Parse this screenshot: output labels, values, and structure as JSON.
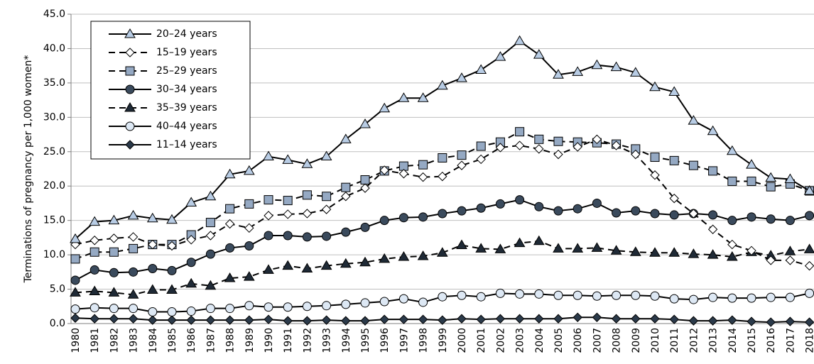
{
  "chart_data": {
    "type": "line",
    "y_label": "Terminations of pregnancy per 1,000 women*",
    "categories": [
      "1980",
      "1981",
      "1982",
      "1983",
      "1984",
      "1985",
      "1986",
      "1987",
      "1988",
      "1989",
      "1990",
      "1991",
      "1992",
      "1993",
      "1994",
      "1995",
      "1996",
      "1997",
      "1998",
      "1999",
      "2000",
      "2001",
      "2002",
      "2003",
      "2004",
      "2005",
      "2006",
      "2007",
      "2008",
      "2009",
      "2010",
      "2011",
      "2012",
      "2013",
      "2014",
      "2015",
      "2016",
      "2017",
      "2018"
    ],
    "ylim": [
      0,
      45
    ],
    "yticks": [
      {
        "value": 0,
        "label": "0.0"
      },
      {
        "value": 5,
        "label": "5.0"
      },
      {
        "value": 10,
        "label": "10.0"
      },
      {
        "value": 15,
        "label": "15.0"
      },
      {
        "value": 20,
        "label": "20.0"
      },
      {
        "value": 25,
        "label": "25.0"
      },
      {
        "value": 30,
        "label": "30.0"
      },
      {
        "value": 35,
        "label": "35.0"
      },
      {
        "value": 40,
        "label": "40.0"
      },
      {
        "value": 45,
        "label": "45.0"
      }
    ],
    "grid": true,
    "legend": "top-left",
    "series": [
      {
        "name": "20–24 years",
        "color": "#000000",
        "dashed": false,
        "marker": "triangle",
        "marker_color": "#b8cce4",
        "values": [
          12.3,
          14.8,
          15.0,
          15.7,
          15.3,
          15.1,
          17.6,
          18.5,
          21.7,
          22.2,
          24.3,
          23.8,
          23.2,
          24.3,
          26.8,
          29.0,
          31.3,
          32.8,
          32.8,
          34.6,
          35.7,
          36.9,
          38.8,
          41.1,
          39.1,
          36.2,
          36.6,
          37.6,
          37.3,
          36.5,
          34.4,
          33.7,
          29.5,
          28.0,
          25.1,
          23.1,
          21.2,
          21.0,
          19.3
        ]
      },
      {
        "name": "15–19 years",
        "color": "#000000",
        "dashed": true,
        "marker": "diamond",
        "marker_color": "#ffffff",
        "values": [
          11.5,
          12.1,
          12.4,
          12.6,
          11.5,
          11.3,
          12.2,
          12.8,
          14.5,
          13.9,
          15.7,
          15.9,
          16.0,
          16.6,
          18.5,
          19.7,
          22.3,
          21.8,
          21.3,
          21.4,
          23.0,
          23.9,
          25.6,
          25.9,
          25.4,
          24.6,
          25.7,
          26.8,
          25.9,
          24.6,
          21.6,
          18.2,
          16.0,
          13.7,
          11.5,
          10.6,
          9.2,
          9.2,
          8.4
        ]
      },
      {
        "name": "25–29 years",
        "color": "#000000",
        "dashed": true,
        "marker": "square",
        "marker_color": "#95a9c3",
        "values": [
          9.4,
          10.4,
          10.4,
          10.9,
          11.5,
          11.5,
          12.9,
          14.7,
          16.7,
          17.4,
          18.0,
          17.9,
          18.7,
          18.5,
          19.8,
          20.9,
          22.2,
          22.9,
          23.1,
          24.1,
          24.5,
          25.8,
          26.4,
          27.9,
          26.8,
          26.5,
          26.4,
          26.3,
          26.1,
          25.4,
          24.2,
          23.7,
          23.0,
          22.2,
          20.7,
          20.7,
          19.9,
          20.3,
          19.3
        ]
      },
      {
        "name": "30–34 years",
        "color": "#000000",
        "dashed": false,
        "marker": "circle",
        "marker_color": "#3a4a5c",
        "values": [
          6.3,
          7.8,
          7.4,
          7.5,
          8.0,
          7.7,
          8.9,
          10.1,
          11.0,
          11.3,
          12.8,
          12.8,
          12.6,
          12.7,
          13.3,
          14.0,
          15.0,
          15.4,
          15.5,
          16.0,
          16.4,
          16.8,
          17.4,
          18.0,
          17.0,
          16.4,
          16.7,
          17.5,
          16.1,
          16.4,
          16.0,
          15.8,
          16.0,
          15.8,
          15.0,
          15.5,
          15.2,
          15.0,
          15.7
        ]
      },
      {
        "name": "35–39 years",
        "color": "#000000",
        "dashed": true,
        "marker": "triangle",
        "marker_color": "#1f2a36",
        "values": [
          4.5,
          4.7,
          4.5,
          4.2,
          4.9,
          4.9,
          5.8,
          5.5,
          6.6,
          6.8,
          7.8,
          8.4,
          8.0,
          8.4,
          8.7,
          8.9,
          9.4,
          9.7,
          9.8,
          10.3,
          11.4,
          10.9,
          10.8,
          11.7,
          12.0,
          10.9,
          10.9,
          11.0,
          10.6,
          10.4,
          10.3,
          10.3,
          10.1,
          10.0,
          9.7,
          10.4,
          9.9,
          10.5,
          10.8
        ]
      },
      {
        "name": "40–44 years",
        "color": "#000000",
        "dashed": false,
        "marker": "circle",
        "marker_color": "#dde8f4",
        "values": [
          2.1,
          2.3,
          2.2,
          2.2,
          1.7,
          1.7,
          1.8,
          2.2,
          2.2,
          2.6,
          2.4,
          2.4,
          2.5,
          2.6,
          2.8,
          3.0,
          3.2,
          3.6,
          3.1,
          3.9,
          4.1,
          3.9,
          4.4,
          4.3,
          4.3,
          4.1,
          4.1,
          4.0,
          4.1,
          4.1,
          4.0,
          3.6,
          3.5,
          3.8,
          3.7,
          3.7,
          3.8,
          3.8,
          4.4
        ]
      },
      {
        "name": "11–14 years",
        "color": "#000000",
        "dashed": false,
        "marker": "diamond",
        "marker_color": "#2b3a4a",
        "values": [
          0.8,
          0.7,
          0.7,
          0.7,
          0.5,
          0.5,
          0.5,
          0.5,
          0.5,
          0.5,
          0.6,
          0.4,
          0.4,
          0.5,
          0.4,
          0.4,
          0.6,
          0.6,
          0.6,
          0.5,
          0.7,
          0.6,
          0.7,
          0.7,
          0.7,
          0.7,
          0.9,
          0.9,
          0.7,
          0.7,
          0.7,
          0.6,
          0.4,
          0.4,
          0.5,
          0.3,
          0.2,
          0.3,
          0.2
        ]
      }
    ]
  }
}
